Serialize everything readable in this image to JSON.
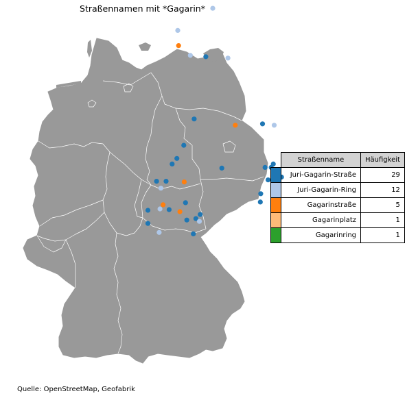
{
  "title": "Straßennamen mit *Gagarin*",
  "source": "Quelle: OpenStreetMap, Geofabrik",
  "colors": {
    "land": "#999999",
    "border": "#ffffff",
    "Juri-Gagarin-Straße": "#1f77b4",
    "Juri-Gagarin-Ring": "#aec7e8",
    "Gagarinstraße": "#ff7f0e",
    "Gagarinplatz": "#ffbb78",
    "Gagarinring": "#2ca02c"
  },
  "table": {
    "header_name": "Straßenname",
    "header_count": "Häufigkeit",
    "rows": [
      {
        "name": "Juri-Gagarin-Straße",
        "count": "29",
        "color": "#1f77b4"
      },
      {
        "name": "Juri-Gagarin-Ring",
        "count": "12",
        "color": "#aec7e8"
      },
      {
        "name": "Gagarinstraße",
        "count": "5",
        "color": "#ff7f0e"
      },
      {
        "name": "Gagarinplatz",
        "count": "1",
        "color": "#ffbb78"
      },
      {
        "name": "Gagarinring",
        "count": "1",
        "color": "#2ca02c"
      }
    ]
  },
  "locations": [
    {
      "lon": 12.17,
      "lat": 54.19,
      "type": "Juri-Gagarin-Ring"
    },
    {
      "lon": 11.36,
      "lat": 53.87,
      "type": "Juri-Gagarin-Ring"
    },
    {
      "lon": 11.38,
      "lat": 53.65,
      "type": "Gagarinstraße"
    },
    {
      "lon": 11.65,
      "lat": 53.51,
      "type": "Juri-Gagarin-Ring"
    },
    {
      "lon": 12.52,
      "lat": 53.47,
      "type": "Juri-Gagarin-Ring"
    },
    {
      "lon": 12.01,
      "lat": 53.49,
      "type": "Juri-Gagarin-Straße"
    },
    {
      "lon": 11.74,
      "lat": 52.59,
      "type": "Juri-Gagarin-Straße"
    },
    {
      "lon": 12.69,
      "lat": 52.5,
      "type": "Gagarinstraße"
    },
    {
      "lon": 13.32,
      "lat": 52.52,
      "type": "Juri-Gagarin-Straße"
    },
    {
      "lon": 13.59,
      "lat": 52.5,
      "type": "Juri-Gagarin-Ring"
    },
    {
      "lon": 11.5,
      "lat": 52.21,
      "type": "Juri-Gagarin-Straße"
    },
    {
      "lon": 11.34,
      "lat": 52.02,
      "type": "Juri-Gagarin-Straße"
    },
    {
      "lon": 11.23,
      "lat": 51.94,
      "type": "Juri-Gagarin-Straße"
    },
    {
      "lon": 12.38,
      "lat": 51.88,
      "type": "Juri-Gagarin-Straße"
    },
    {
      "lon": 13.38,
      "lat": 51.89,
      "type": "Juri-Gagarin-Straße"
    },
    {
      "lon": 13.52,
      "lat": 51.89,
      "type": "Juri-Gagarin-Straße"
    },
    {
      "lon": 13.57,
      "lat": 51.94,
      "type": "Juri-Gagarin-Straße"
    },
    {
      "lon": 13.76,
      "lat": 51.75,
      "type": "Juri-Gagarin-Straße"
    },
    {
      "lon": 13.45,
      "lat": 51.71,
      "type": "Juri-Gagarin-Straße"
    },
    {
      "lon": 10.87,
      "lat": 51.69,
      "type": "Juri-Gagarin-Straße"
    },
    {
      "lon": 11.09,
      "lat": 51.69,
      "type": "Juri-Gagarin-Straße"
    },
    {
      "lon": 11.51,
      "lat": 51.68,
      "type": "Gagarinstraße"
    },
    {
      "lon": 10.97,
      "lat": 51.59,
      "type": "Juri-Gagarin-Ring"
    },
    {
      "lon": 13.62,
      "lat": 51.57,
      "type": "Juri-Gagarin-Straße"
    },
    {
      "lon": 13.28,
      "lat": 51.51,
      "type": "Juri-Gagarin-Straße"
    },
    {
      "lon": 11.02,
      "lat": 51.35,
      "type": "Gagarinstraße"
    },
    {
      "lon": 11.54,
      "lat": 51.38,
      "type": "Juri-Gagarin-Straße"
    },
    {
      "lon": 13.27,
      "lat": 51.39,
      "type": "Juri-Gagarin-Straße"
    },
    {
      "lon": 10.67,
      "lat": 51.27,
      "type": "Juri-Gagarin-Straße"
    },
    {
      "lon": 10.95,
      "lat": 51.29,
      "type": "Juri-Gagarin-Ring"
    },
    {
      "lon": 11.16,
      "lat": 51.28,
      "type": "Juri-Gagarin-Straße"
    },
    {
      "lon": 11.41,
      "lat": 51.25,
      "type": "Gagarinstraße"
    },
    {
      "lon": 11.88,
      "lat": 51.21,
      "type": "Juri-Gagarin-Straße"
    },
    {
      "lon": 11.78,
      "lat": 51.15,
      "type": "Juri-Gagarin-Straße"
    },
    {
      "lon": 11.57,
      "lat": 51.13,
      "type": "Juri-Gagarin-Straße"
    },
    {
      "lon": 11.86,
      "lat": 51.11,
      "type": "Juri-Gagarin-Ring"
    },
    {
      "lon": 10.67,
      "lat": 51.08,
      "type": "Juri-Gagarin-Straße"
    },
    {
      "lon": 10.93,
      "lat": 50.95,
      "type": "Juri-Gagarin-Ring"
    },
    {
      "lon": 11.72,
      "lat": 50.93,
      "type": "Juri-Gagarin-Straße"
    }
  ]
}
